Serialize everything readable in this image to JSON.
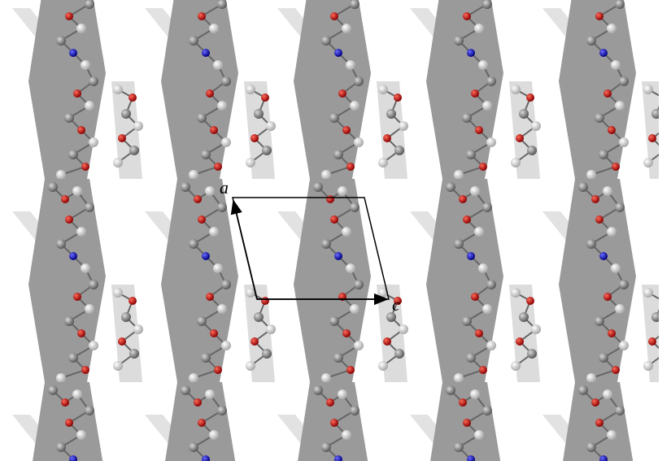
{
  "axes": {
    "a": {
      "label": "a"
    },
    "c": {
      "label": "c"
    }
  }
}
